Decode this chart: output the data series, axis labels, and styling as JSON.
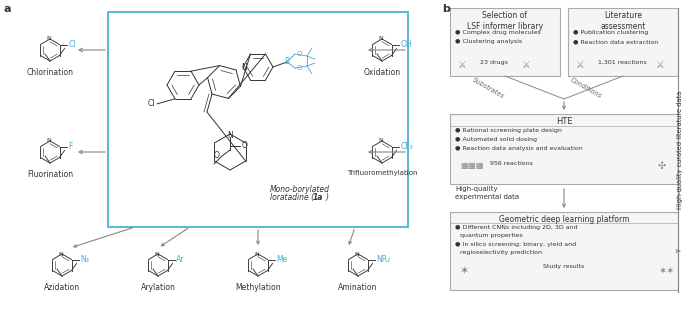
{
  "bg_color": "#ffffff",
  "panel_a_label": "a",
  "panel_b_label": "b",
  "box_color": "#5bb8d4",
  "arrow_color": "#888888",
  "blue_text_color": "#4aabcf",
  "black_text_color": "#333333",
  "center_label_normal": "Mono-borylated\nloratadine (",
  "center_label_bold": "1a",
  "center_label_end": ")",
  "reactions_left": [
    "Chlorination",
    "Fluorination"
  ],
  "reactions_right": [
    "Oxidation",
    "Trifluoromethylation"
  ],
  "reactions_bottom": [
    "Azidation",
    "Arylation",
    "Methylation",
    "Amination"
  ],
  "left_tags": [
    "Cl",
    "F"
  ],
  "right_tags": [
    "OH",
    "CF₃"
  ],
  "bottom_tags": [
    "N₃",
    "Ar",
    "Me",
    "NR₂"
  ],
  "box1_title": "Selection of\nLSF informer library",
  "box1_bullets": [
    "Complex drug molecules",
    "Clustering analysis"
  ],
  "box1_footer1": "23 drugs",
  "box2_title": "Literature\nassessment",
  "box2_bullets": [
    "Publication clustering",
    "Reaction data extraction"
  ],
  "box2_footer1": "1,301 reactions",
  "box3_title": "HTE",
  "box3_bullets": [
    "Rational screening plate design",
    "Automated solid dosing",
    "Reaction data analysis and evaluation"
  ],
  "box3_footer": "956 reactions",
  "box3_label": "High-quality\nexperimental data",
  "box4_title": "Geometric deep learning platform",
  "box4_bullets": [
    "Different CNNs including 2D, 3D and\nquantum properties",
    "In silico screening: binary, yield and\nregioselectivity prediction"
  ],
  "box4_footer": "Study results",
  "substrates_label": "Substrates",
  "conditions_label": "Conditions",
  "side_label": "High-quality curated literature data"
}
